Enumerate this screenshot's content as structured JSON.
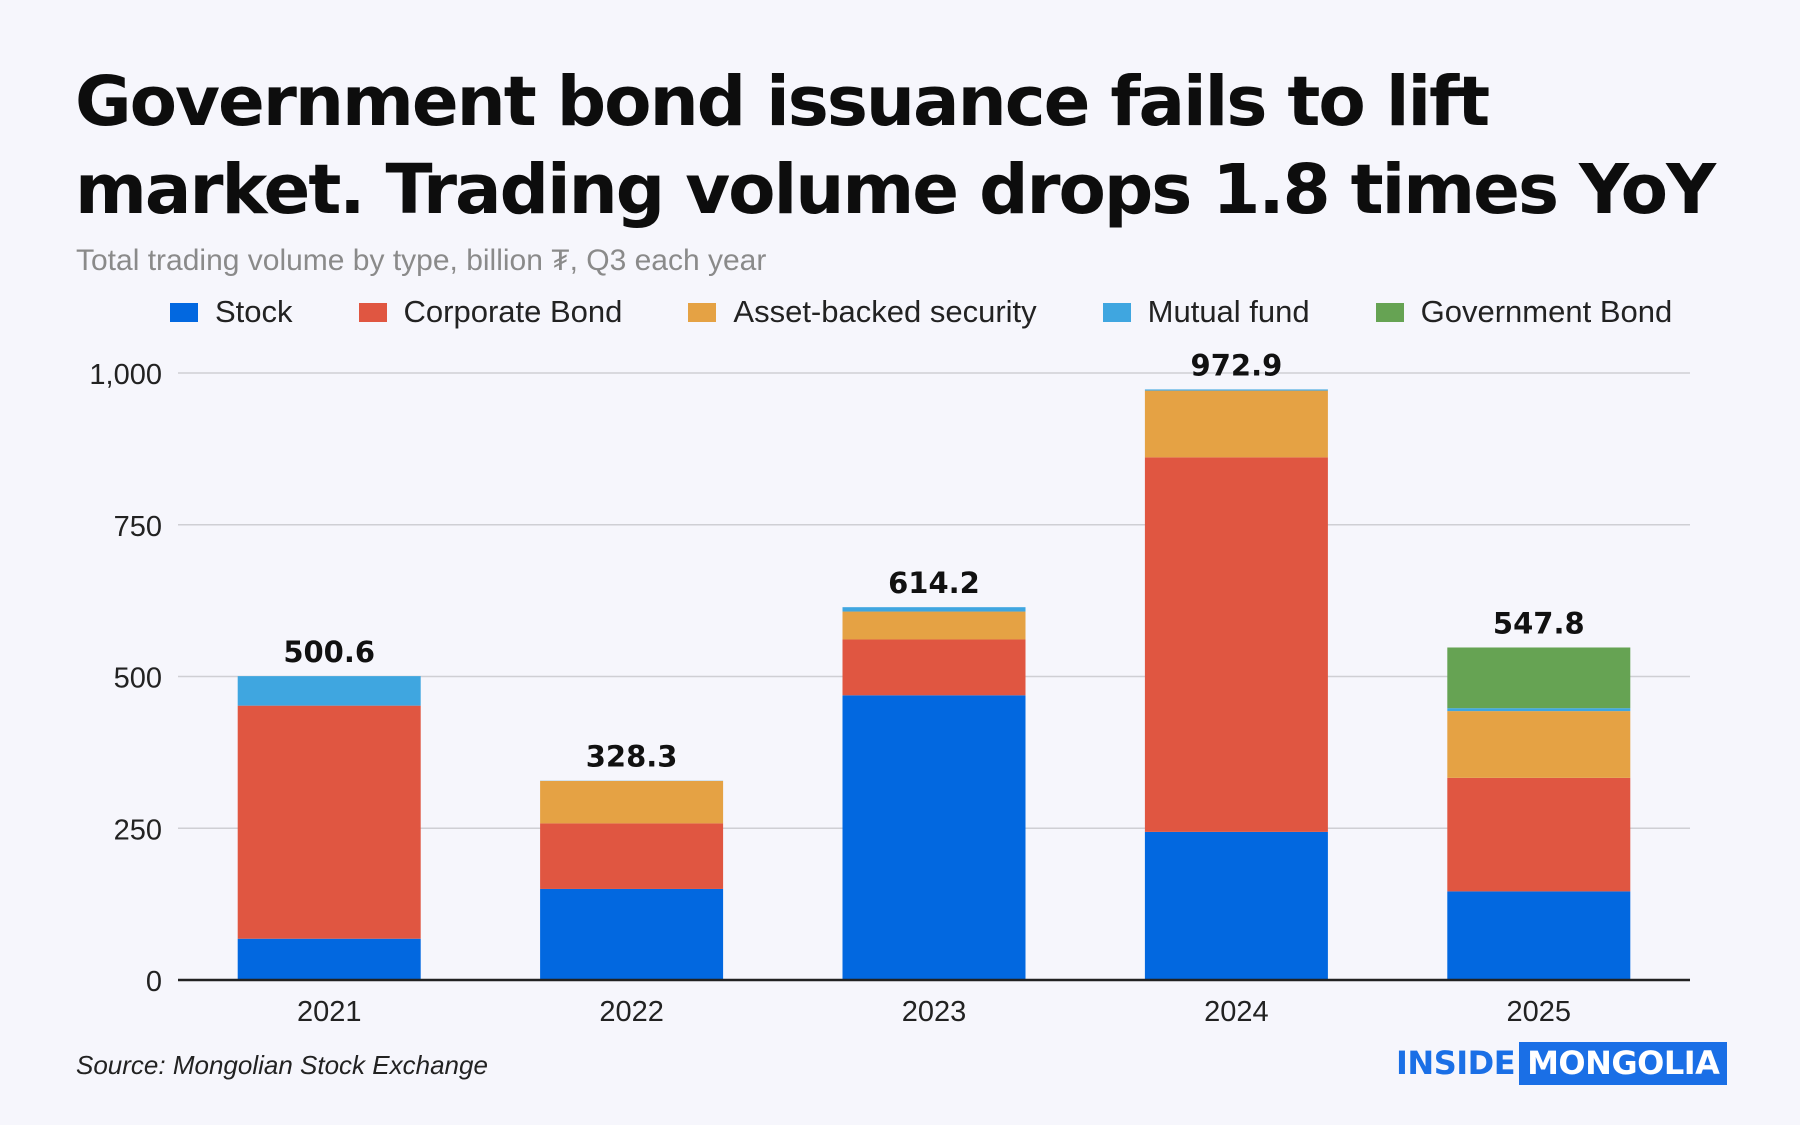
{
  "header": {
    "title": "Government bond issuance fails to lift market. Trading volume drops 1.8 times YoY",
    "subtitle": "Total trading volume by type, billion ₮, Q3 each year"
  },
  "footer": {
    "source": "Source: Mongolian Stock Exchange",
    "logo_inside": "INSIDE",
    "logo_mongolia": "MONGOLIA"
  },
  "chart_data": {
    "type": "bar",
    "stacked": true,
    "title": "Government bond issuance fails to lift market. Trading volume drops 1.8 times YoY",
    "subtitle": "Total trading volume by type, billion ₮, Q3 each year",
    "xlabel": "",
    "ylabel": "",
    "ylim": [
      0,
      1000
    ],
    "yticks": [
      0,
      250,
      500,
      750,
      1000
    ],
    "ytick_labels": [
      "0",
      "250",
      "500",
      "750",
      "1,000"
    ],
    "grid": true,
    "legend_position": "top",
    "categories": [
      "2021",
      "2022",
      "2023",
      "2024",
      "2025"
    ],
    "series": [
      {
        "name": "Stock",
        "color": "#0268e0",
        "values": [
          68,
          150,
          469,
          244,
          146
        ]
      },
      {
        "name": "Corporate Bond",
        "color": "#e05641",
        "values": [
          384,
          108,
          92,
          617,
          187
        ]
      },
      {
        "name": "Asset-backed security",
        "color": "#e5a244",
        "values": [
          0,
          70,
          46,
          110,
          110
        ]
      },
      {
        "name": "Mutual fund",
        "color": "#3fa6e0",
        "values": [
          48.6,
          0.3,
          7.2,
          1.9,
          4.8
        ]
      },
      {
        "name": "Government Bond",
        "color": "#66a353",
        "values": [
          0,
          0,
          0,
          0,
          100
        ]
      }
    ],
    "totals": [
      500.6,
      328.3,
      614.2,
      972.9,
      547.8
    ],
    "total_labels": [
      "500.6",
      "328.3",
      "614.2",
      "972.9",
      "547.8"
    ]
  }
}
